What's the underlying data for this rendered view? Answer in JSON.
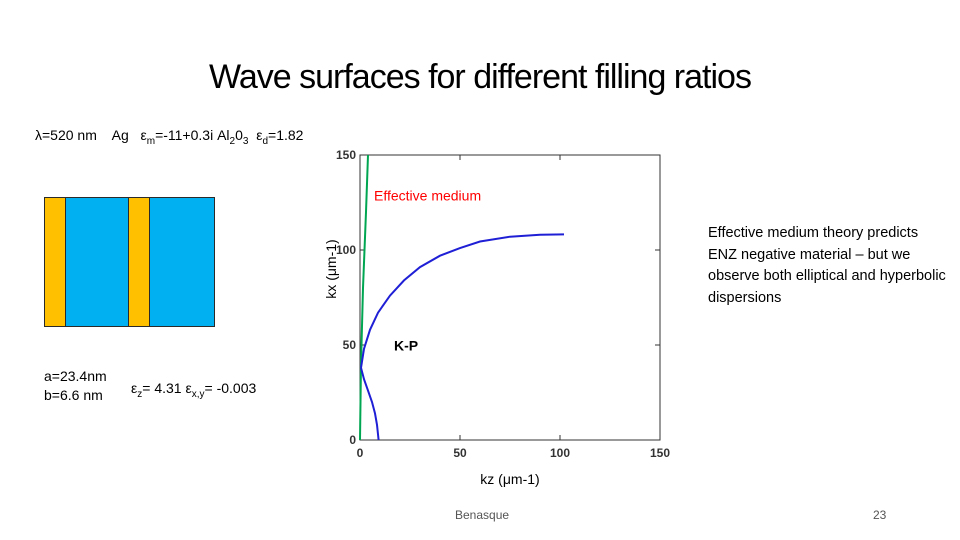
{
  "slide": {
    "title": "Wave surfaces for different filling ratios",
    "params": {
      "lambda": "λ=520 nm",
      "metal": "Ag",
      "eps_m_symbol": "ε",
      "eps_m_sub": "m",
      "eps_m_value": "=-11+0.3i",
      "dielectric": "Al",
      "dielectric_sub1": "2",
      "dielectric_mid": "0",
      "dielectric_sub2": "3",
      "eps_d_symbol": "ε",
      "eps_d_sub": "d",
      "eps_d_value": "=1.82"
    },
    "structure": {
      "a": "a=23.4nm",
      "b": "b=6.6 nm",
      "eps_z_symbol": "ε",
      "eps_z_sub": "z",
      "eps_z_value": "= 4.31",
      "eps_xy_symbol": "ε",
      "eps_xy_sub": "x,y",
      "eps_xy_value": "= -0.003"
    },
    "layer_colors": {
      "metal": "#FFC000",
      "dielectric": "#00B0F0"
    },
    "note": [
      "Effective medium theory predicts",
      "ENZ negative material – but we observe both elliptical and hyperbolic dispersions"
    ],
    "footer": "Benasque",
    "page_number": "23"
  },
  "chart_data": {
    "type": "line",
    "title": "",
    "xlabel": "kz (μm-1)",
    "ylabel": "kx (μm-1)",
    "xlim": [
      0,
      150
    ],
    "ylim": [
      0,
      150
    ],
    "xticks": [
      0,
      50,
      100,
      150
    ],
    "yticks": [
      0,
      50,
      100,
      150
    ],
    "annotations": [
      {
        "text": "Effective medium",
        "color": "#FF0000",
        "x": 7,
        "y": 126
      },
      {
        "text": "K-P",
        "color": "#000000",
        "x": 17,
        "y": 47
      }
    ],
    "series": [
      {
        "name": "Effective medium",
        "color": "#00A651",
        "points": [
          [
            0,
            0
          ],
          [
            0.5,
            40
          ],
          [
            1.5,
            80
          ],
          [
            3,
            120
          ],
          [
            4,
            150
          ]
        ]
      },
      {
        "name": "K-P elliptical",
        "color": "#1F1FD6",
        "points": [
          [
            0.5,
            38
          ],
          [
            2,
            48
          ],
          [
            5,
            58
          ],
          [
            9,
            67
          ],
          [
            15,
            76
          ],
          [
            22,
            84
          ],
          [
            30,
            91
          ],
          [
            40,
            97
          ],
          [
            50,
            101
          ],
          [
            60,
            104.5
          ],
          [
            75,
            107
          ],
          [
            90,
            108
          ],
          [
            102,
            108.2
          ]
        ]
      },
      {
        "name": "K-P hyperbolic",
        "color": "#1F1FD6",
        "points": [
          [
            0.5,
            38
          ],
          [
            2,
            32
          ],
          [
            4,
            26
          ],
          [
            6,
            20
          ],
          [
            7.5,
            14
          ],
          [
            8.5,
            8
          ],
          [
            9,
            3
          ],
          [
            9.3,
            0
          ]
        ]
      }
    ]
  }
}
